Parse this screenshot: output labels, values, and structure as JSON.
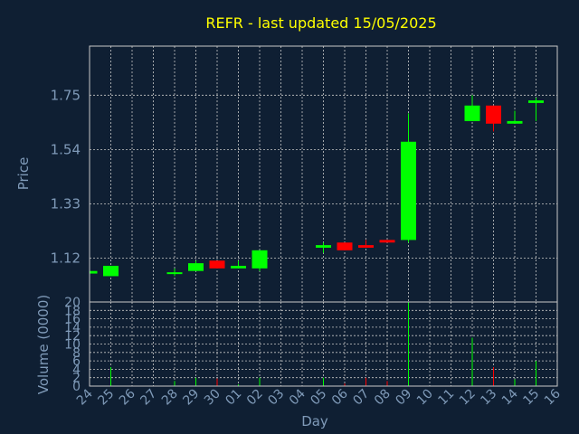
{
  "chart_data": {
    "type": "candlestick",
    "title": "REFR - last updated 15/05/2025",
    "xlabel": "Day",
    "price_ylabel": "Price",
    "volume_ylabel": "Volume (0000)",
    "price_ticks": [
      "1.12",
      "1.33",
      "1.54",
      "1.75"
    ],
    "price_ylim": [
      0.95,
      1.94
    ],
    "volume_ticks": [
      0,
      2,
      4,
      6,
      8,
      10,
      12,
      14,
      16,
      18,
      20
    ],
    "volume_ylim": [
      0,
      20
    ],
    "days": [
      "24",
      "25",
      "26",
      "27",
      "28",
      "29",
      "30",
      "01",
      "02",
      "03",
      "04",
      "05",
      "06",
      "07",
      "08",
      "09",
      "10",
      "11",
      "12",
      "13",
      "14",
      "15",
      "16"
    ],
    "candles": [
      {
        "day": "24",
        "open": 1.06,
        "close": 1.07,
        "high": 1.07,
        "low": 1.06,
        "volume": 0.6
      },
      {
        "day": "25",
        "open": 1.05,
        "close": 1.09,
        "high": 1.09,
        "low": 1.05,
        "volume": 4.5
      },
      {
        "day": "28",
        "open": 1.06,
        "close": 1.065,
        "high": 1.08,
        "low": 1.05,
        "volume": 1.2
      },
      {
        "day": "29",
        "open": 1.07,
        "close": 1.1,
        "high": 1.11,
        "low": 1.07,
        "volume": 2.0
      },
      {
        "day": "30",
        "open": 1.11,
        "close": 1.08,
        "high": 1.11,
        "low": 1.08,
        "volume": 1.8
      },
      {
        "day": "01",
        "open": 1.08,
        "close": 1.09,
        "high": 1.11,
        "low": 1.08,
        "volume": 0.4
      },
      {
        "day": "02",
        "open": 1.08,
        "close": 1.15,
        "high": 1.15,
        "low": 1.07,
        "volume": 2.0
      },
      {
        "day": "05",
        "open": 1.16,
        "close": 1.17,
        "high": 1.18,
        "low": 1.14,
        "volume": 2.0
      },
      {
        "day": "06",
        "open": 1.18,
        "close": 1.15,
        "high": 1.18,
        "low": 1.15,
        "volume": 0.6
      },
      {
        "day": "07",
        "open": 1.17,
        "close": 1.16,
        "high": 1.19,
        "low": 1.16,
        "volume": 2.0
      },
      {
        "day": "08",
        "open": 1.19,
        "close": 1.18,
        "high": 1.19,
        "low": 1.18,
        "volume": 1.2
      },
      {
        "day": "09",
        "open": 1.19,
        "close": 1.57,
        "high": 1.68,
        "low": 1.18,
        "volume": 20.0
      },
      {
        "day": "12",
        "open": 1.65,
        "close": 1.71,
        "high": 1.75,
        "low": 1.65,
        "volume": 11.5
      },
      {
        "day": "13",
        "open": 1.71,
        "close": 1.64,
        "high": 1.71,
        "low": 1.61,
        "volume": 4.5
      },
      {
        "day": "14",
        "open": 1.64,
        "close": 1.65,
        "high": 1.69,
        "low": 1.64,
        "volume": 1.6
      },
      {
        "day": "15",
        "open": 1.72,
        "close": 1.73,
        "high": 1.74,
        "low": 1.65,
        "volume": 6.0
      }
    ],
    "colors": {
      "up": "#00ff00",
      "down": "#ff0000",
      "background": "#0f1f33",
      "grid": "#c8c8c8",
      "title": "#ffff00",
      "text": "#7f9ab8"
    },
    "grid": true
  }
}
